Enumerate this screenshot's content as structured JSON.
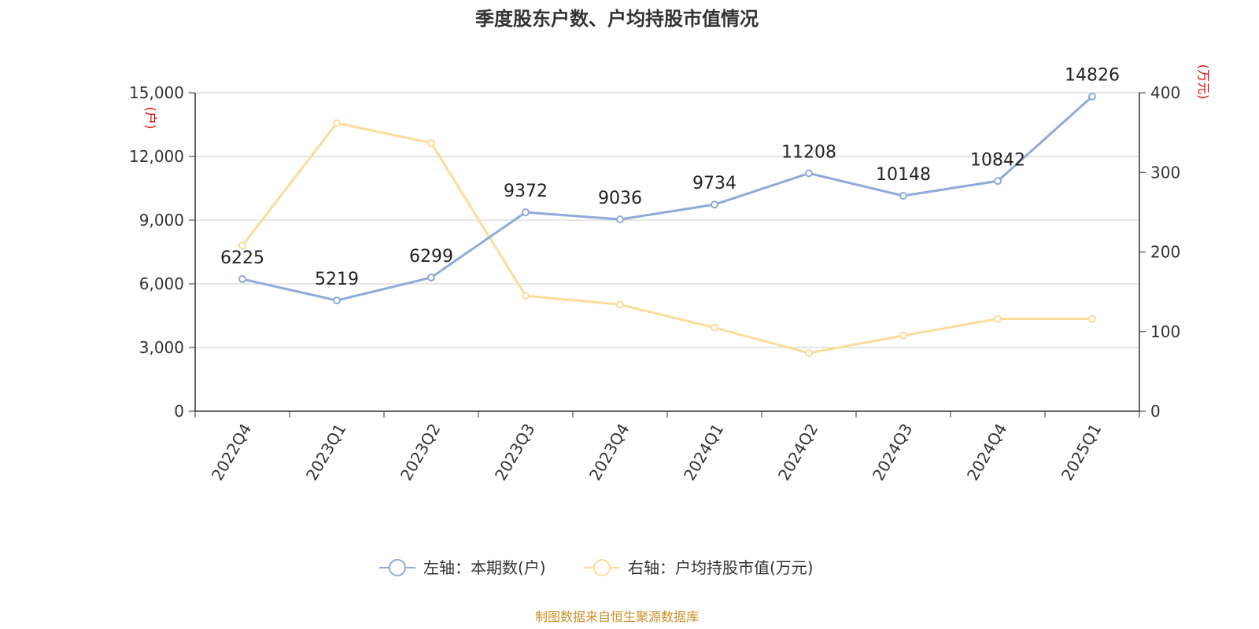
{
  "title": "季度股东户数、户均持股市值情况",
  "source": "制图数据来自恒生聚源数据库",
  "chart_data": {
    "type": "line",
    "categories": [
      "2022Q4",
      "2023Q1",
      "2023Q2",
      "2023Q3",
      "2023Q4",
      "2024Q1",
      "2024Q2",
      "2024Q3",
      "2024Q4",
      "2025Q1"
    ],
    "series": [
      {
        "name": "左轴：本期数(户)",
        "axis": "left",
        "color": "#8eaad8",
        "values": [
          6225,
          5219,
          6299,
          9372,
          9036,
          9734,
          11208,
          10148,
          10842,
          14826
        ],
        "labels": [
          "6225",
          "5219",
          "6299",
          "9372",
          "9036",
          "9734",
          "11208",
          "10148",
          "10842",
          "14826"
        ]
      },
      {
        "name": "右轴：户均持股市值(万元)",
        "axis": "right",
        "color": "#fddc9a",
        "values": [
          208,
          362,
          337,
          145,
          134,
          105,
          73,
          95,
          116,
          116
        ]
      }
    ],
    "left_axis": {
      "unit": "(户)",
      "min": 0,
      "max": 15000,
      "ticks": [
        0,
        3000,
        6000,
        9000,
        12000,
        15000
      ],
      "tick_labels": [
        "0",
        "3,000",
        "6,000",
        "9,000",
        "12,000",
        "15,000"
      ]
    },
    "right_axis": {
      "unit": "(万元)",
      "min": 0,
      "max": 400,
      "ticks": [
        0,
        100,
        200,
        300,
        400
      ],
      "tick_labels": [
        "0",
        "100",
        "200",
        "300",
        "400"
      ]
    },
    "grid": true,
    "legend_position": "bottom"
  }
}
